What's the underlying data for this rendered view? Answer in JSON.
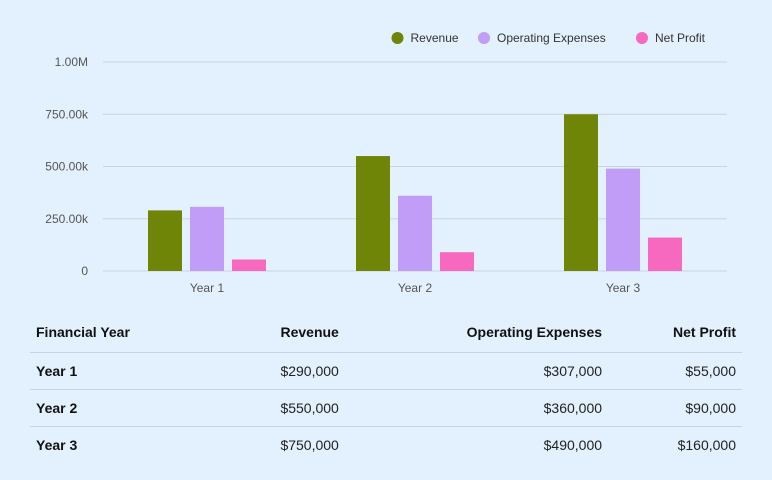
{
  "chart_data": {
    "type": "bar",
    "categories": [
      "Year 1",
      "Year 2",
      "Year 3"
    ],
    "series": [
      {
        "name": "Revenue",
        "color": "#6e8507",
        "values": [
          290000,
          550000,
          750000
        ]
      },
      {
        "name": "Operating Expenses",
        "color": "#c19df7",
        "values": [
          307000,
          360000,
          490000
        ]
      },
      {
        "name": "Net Profit",
        "color": "#f769be",
        "values": [
          55000,
          90000,
          160000
        ]
      }
    ],
    "yticks": [
      {
        "value": 0,
        "label": "0"
      },
      {
        "value": 250000,
        "label": "250.00k"
      },
      {
        "value": 500000,
        "label": "500.00k"
      },
      {
        "value": 750000,
        "label": "750.00k"
      },
      {
        "value": 1000000,
        "label": "1.00M"
      }
    ],
    "ylim": [
      0,
      1000000
    ],
    "title": "",
    "xlabel": "",
    "ylabel": "",
    "grid": true,
    "legend_position": "top-right"
  },
  "table": {
    "headers": [
      "Financial Year",
      "Revenue",
      "Operating Expenses",
      "Net Profit"
    ],
    "rows": [
      [
        "Year 1",
        "$290,000",
        "$307,000",
        "$55,000"
      ],
      [
        "Year 2",
        "$550,000",
        "$360,000",
        "$90,000"
      ],
      [
        "Year 3",
        "$750,000",
        "$490,000",
        "$160,000"
      ]
    ]
  }
}
